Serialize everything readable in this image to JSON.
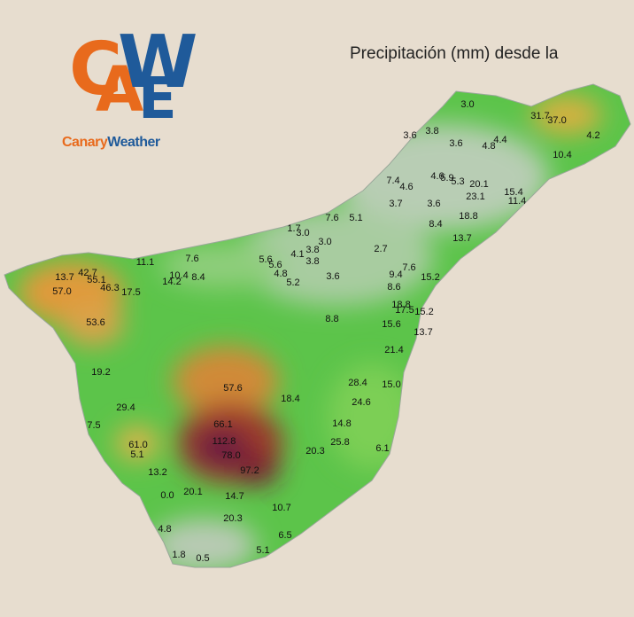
{
  "header": {
    "title": "Precipitación (mm) desde la"
  },
  "logo": {
    "letters": [
      "C",
      "A",
      "W",
      "E"
    ],
    "brand_first": "Canary",
    "brand_second": "Weather"
  },
  "stations": [
    {
      "value": "3.0"
    },
    {
      "value": "31.7"
    },
    {
      "value": "37.0"
    },
    {
      "value": "3.6"
    },
    {
      "value": "3.8"
    },
    {
      "value": "3.6"
    },
    {
      "value": "4.8"
    },
    {
      "value": "4.4"
    },
    {
      "value": "4.2"
    },
    {
      "value": "10.4"
    },
    {
      "value": "7.4"
    },
    {
      "value": "4.6"
    },
    {
      "value": "4.6"
    },
    {
      "value": "5.9"
    },
    {
      "value": "5.3"
    },
    {
      "value": "20.1"
    },
    {
      "value": "15.4"
    },
    {
      "value": "23.1"
    },
    {
      "value": "11.4"
    },
    {
      "value": "3.7"
    },
    {
      "value": "3.6"
    },
    {
      "value": "7.6"
    },
    {
      "value": "5.1"
    },
    {
      "value": "18.8"
    },
    {
      "value": "8.4"
    },
    {
      "value": "1.7"
    },
    {
      "value": "3.0"
    },
    {
      "value": "3.0"
    },
    {
      "value": "13.7"
    },
    {
      "value": "4.1"
    },
    {
      "value": "3.8"
    },
    {
      "value": "2.7"
    },
    {
      "value": "3.8"
    },
    {
      "value": "11.1"
    },
    {
      "value": "7.6"
    },
    {
      "value": "5.6"
    },
    {
      "value": "5.6"
    },
    {
      "value": "13.7"
    },
    {
      "value": "42.7"
    },
    {
      "value": "55.1"
    },
    {
      "value": "10.4"
    },
    {
      "value": "8.4"
    },
    {
      "value": "14.2"
    },
    {
      "value": "46.3"
    },
    {
      "value": "4.8"
    },
    {
      "value": "7.6"
    },
    {
      "value": "9.4"
    },
    {
      "value": "15.2"
    },
    {
      "value": "5.2"
    },
    {
      "value": "3.6"
    },
    {
      "value": "57.0"
    },
    {
      "value": "17.5"
    },
    {
      "value": "8.6"
    },
    {
      "value": "18.8"
    },
    {
      "value": "17.5"
    },
    {
      "value": "15.2"
    },
    {
      "value": "8.8"
    },
    {
      "value": "53.6"
    },
    {
      "value": "15.6"
    },
    {
      "value": "13.7"
    },
    {
      "value": "21.4"
    },
    {
      "value": "19.2"
    },
    {
      "value": "57.6"
    },
    {
      "value": "28.4"
    },
    {
      "value": "15.0"
    },
    {
      "value": "18.4"
    },
    {
      "value": "24.6"
    },
    {
      "value": "29.4"
    },
    {
      "value": "66.1"
    },
    {
      "value": "14.8"
    },
    {
      "value": "7.5"
    },
    {
      "value": "112.8"
    },
    {
      "value": "25.8"
    },
    {
      "value": "61.0"
    },
    {
      "value": "5.1"
    },
    {
      "value": "78.0"
    },
    {
      "value": "20.3"
    },
    {
      "value": "6.1"
    },
    {
      "value": "97.2"
    },
    {
      "value": "13.2"
    },
    {
      "value": "20.1"
    },
    {
      "value": "0.0"
    },
    {
      "value": "14.7"
    },
    {
      "value": "10.7"
    },
    {
      "value": "20.3"
    },
    {
      "value": "4.8"
    },
    {
      "value": "6.5"
    },
    {
      "value": "5.1"
    },
    {
      "value": "1.8"
    },
    {
      "value": "0.5"
    }
  ]
}
